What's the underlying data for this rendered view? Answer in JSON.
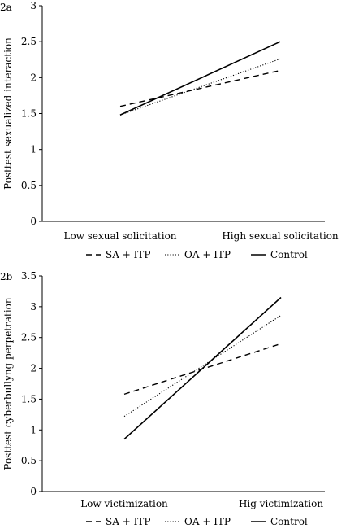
{
  "chart_data": [
    {
      "type": "line",
      "panel_label": "2a",
      "categories": [
        "Low sexual solicitation",
        "High sexual solicitation"
      ],
      "ylabel": "Posttest sexualized interaction",
      "xlabel": "",
      "ylim": [
        0,
        3
      ],
      "yticks": [
        "0",
        "0.5",
        "1",
        "1.5",
        "2",
        "2.5",
        "3"
      ],
      "grid": false,
      "legend_placement": "bottom",
      "series": [
        {
          "name": "SA + ITP",
          "style": "dashed",
          "values": [
            1.6,
            2.1
          ]
        },
        {
          "name": "OA + ITP",
          "style": "dotted",
          "values": [
            1.48,
            2.26
          ]
        },
        {
          "name": "Control",
          "style": "solid",
          "values": [
            1.48,
            2.5
          ]
        }
      ]
    },
    {
      "type": "line",
      "panel_label": "2b",
      "categories": [
        "Low victimization",
        "Hig victimization"
      ],
      "ylabel": "Posttest cyberbullyng perpetration",
      "xlabel": "",
      "ylim": [
        0,
        3.5
      ],
      "yticks": [
        "0",
        "0.5",
        "1",
        "1.5",
        "2",
        "2.5",
        "3",
        "3.5"
      ],
      "grid": false,
      "legend_placement": "bottom",
      "series": [
        {
          "name": "SA + ITP",
          "style": "dashed",
          "values": [
            1.58,
            2.4
          ]
        },
        {
          "name": "OA + ITP",
          "style": "dotted",
          "values": [
            1.22,
            2.86
          ]
        },
        {
          "name": "Control",
          "style": "solid",
          "values": [
            0.85,
            3.15
          ]
        }
      ]
    }
  ]
}
